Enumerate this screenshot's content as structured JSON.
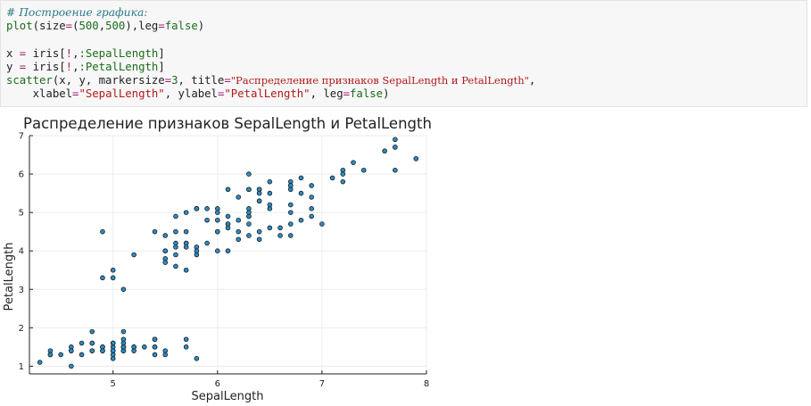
{
  "code_cell": {
    "line1_comment": "# Построение графика:",
    "line2": {
      "fn": "plot",
      "p1": "(size",
      "eq1": "=",
      "p2": "(",
      "n1": "500",
      "p3": ",",
      "n2": "500",
      "p4": "),leg",
      "eq2": "=",
      "kw": "false",
      "p5": ")"
    },
    "line4": {
      "v": "x",
      "eq": " = ",
      "a": "iris[",
      "bang": "!",
      "b": ",",
      "sym": ":SepalLength",
      "c": "]"
    },
    "line5": {
      "v": "y",
      "eq": " = ",
      "a": "iris[",
      "bang": "!",
      "b": ",",
      "sym": ":PetalLength",
      "c": "]"
    },
    "line6": {
      "fn": "scatter",
      "a": "(x, y, markersize",
      "eq1": "=",
      "n": "3",
      "b": ", title",
      "eq2": "=",
      "title_str": "\"Распределение признаков SepalLength и PetalLength\"",
      "c": ","
    },
    "line7": {
      "indent": "    ",
      "a": "xlabel",
      "eq1": "=",
      "s1": "\"SepalLength\"",
      "b": ", ylabel",
      "eq2": "=",
      "s2": "\"PetalLength\"",
      "c": ", leg",
      "eq3": "=",
      "kw": "false",
      "d": ")"
    }
  },
  "chart_data": {
    "type": "scatter",
    "title": "Распределение признаков SepalLength и PetalLength",
    "xlabel": "SepalLength",
    "ylabel": "PetalLength",
    "xlim": [
      4.2,
      8.0
    ],
    "ylim": [
      0.8,
      7.0
    ],
    "xticks": [
      5,
      6,
      7,
      8
    ],
    "yticks": [
      1,
      2,
      3,
      4,
      5,
      6,
      7
    ],
    "grid": true,
    "legend": false,
    "marker_color": "#2b8cc4",
    "marker_edge": "#1a1a1a",
    "x": [
      5.1,
      4.9,
      4.7,
      4.6,
      5.0,
      5.4,
      4.6,
      5.0,
      4.4,
      4.9,
      5.4,
      4.8,
      4.8,
      4.3,
      5.8,
      5.7,
      5.4,
      5.1,
      5.7,
      5.1,
      5.4,
      5.1,
      4.6,
      5.1,
      4.8,
      5.0,
      5.0,
      5.2,
      5.2,
      4.7,
      4.8,
      5.4,
      5.2,
      5.5,
      4.9,
      5.0,
      5.5,
      4.9,
      4.4,
      5.1,
      5.0,
      4.5,
      4.4,
      5.0,
      5.1,
      4.8,
      5.1,
      4.6,
      5.3,
      5.0,
      7.0,
      6.4,
      6.9,
      5.5,
      6.5,
      5.7,
      6.3,
      4.9,
      6.6,
      5.2,
      5.0,
      5.9,
      6.0,
      6.1,
      5.6,
      6.7,
      5.6,
      5.8,
      6.2,
      5.6,
      5.9,
      6.1,
      6.3,
      6.1,
      6.4,
      6.6,
      6.8,
      6.7,
      6.0,
      5.7,
      5.5,
      5.5,
      5.8,
      6.0,
      5.4,
      6.0,
      6.7,
      6.3,
      5.6,
      5.5,
      5.5,
      6.1,
      5.8,
      5.0,
      5.6,
      5.7,
      5.7,
      6.2,
      5.1,
      5.7,
      6.3,
      5.8,
      7.1,
      6.3,
      6.5,
      7.6,
      4.9,
      7.3,
      6.7,
      7.2,
      6.5,
      6.4,
      6.8,
      5.7,
      5.8,
      6.4,
      6.5,
      7.7,
      7.7,
      6.0,
      6.9,
      5.6,
      7.7,
      6.3,
      6.7,
      7.2,
      6.2,
      6.1,
      6.4,
      7.2,
      7.4,
      7.9,
      6.4,
      6.3,
      6.1,
      7.7,
      6.3,
      6.4,
      6.0,
      6.9,
      6.7,
      6.9,
      5.8,
      6.8,
      6.7,
      6.7,
      6.3,
      6.5,
      6.2,
      5.9
    ],
    "y": [
      1.4,
      1.4,
      1.3,
      1.5,
      1.4,
      1.7,
      1.4,
      1.5,
      1.4,
      1.5,
      1.5,
      1.6,
      1.4,
      1.1,
      1.2,
      1.5,
      1.3,
      1.4,
      1.7,
      1.5,
      1.7,
      1.5,
      1.0,
      1.7,
      1.9,
      1.6,
      1.6,
      1.5,
      1.4,
      1.6,
      1.6,
      1.5,
      1.5,
      1.4,
      1.5,
      1.2,
      1.3,
      1.4,
      1.3,
      1.5,
      1.3,
      1.3,
      1.3,
      1.6,
      1.9,
      1.4,
      1.6,
      1.4,
      1.5,
      1.4,
      4.7,
      4.5,
      4.9,
      4.0,
      4.6,
      4.5,
      4.7,
      3.3,
      4.6,
      3.9,
      3.5,
      4.2,
      4.0,
      4.7,
      3.6,
      4.4,
      4.5,
      4.1,
      4.5,
      3.9,
      4.8,
      4.0,
      4.9,
      4.7,
      4.3,
      4.4,
      4.8,
      5.0,
      4.5,
      3.5,
      3.8,
      3.7,
      3.9,
      5.1,
      4.5,
      4.5,
      4.7,
      4.4,
      4.1,
      4.0,
      4.4,
      4.6,
      4.0,
      3.3,
      4.2,
      4.2,
      4.2,
      4.3,
      3.0,
      4.1,
      6.0,
      5.1,
      5.9,
      5.6,
      5.8,
      6.6,
      4.5,
      6.3,
      5.8,
      6.1,
      5.1,
      5.3,
      5.5,
      5.0,
      5.1,
      5.3,
      5.5,
      6.7,
      6.9,
      5.0,
      5.7,
      4.9,
      6.7,
      4.9,
      5.7,
      6.0,
      4.8,
      4.9,
      5.6,
      5.8,
      6.1,
      6.4,
      5.6,
      5.1,
      5.6,
      6.1,
      5.6,
      5.5,
      4.8,
      5.4,
      5.6,
      5.1,
      5.1,
      5.9,
      5.7,
      5.2,
      5.0,
      5.2,
      5.4,
      5.1
    ]
  }
}
